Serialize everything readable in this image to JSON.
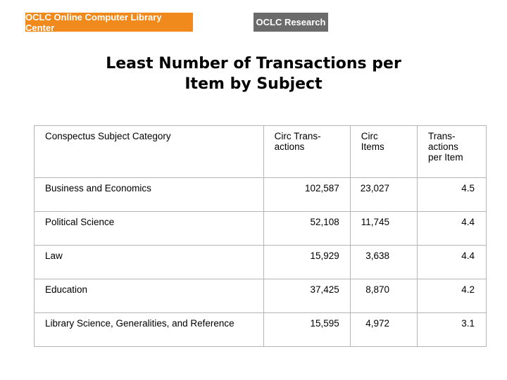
{
  "header": {
    "logo_left": "OCLC Online Computer Library Center",
    "logo_right": "OCLC Research"
  },
  "title": {
    "line1": "Least Number of Transactions per",
    "line2": "Item by Subject"
  },
  "table": {
    "headers": {
      "category": "Conspectus Subject Category",
      "circ_trans_line1": "Circ Trans-",
      "circ_trans_line2": "actions",
      "circ_items_line1": "Circ",
      "circ_items_line2": "Items",
      "per_item_line1": "Trans-",
      "per_item_line2": "actions",
      "per_item_line3": "per Item"
    },
    "rows": [
      {
        "category": "Business and Economics",
        "circ_transactions": "102,587",
        "circ_items": "23,027",
        "per_item": "4.5"
      },
      {
        "category": "Political Science",
        "circ_transactions": "52,108",
        "circ_items": "11,745",
        "per_item": "4.4"
      },
      {
        "category": "Law",
        "circ_transactions": "15,929",
        "circ_items": "3,638",
        "per_item": "4.4"
      },
      {
        "category": "Education",
        "circ_transactions": "37,425",
        "circ_items": "8,870",
        "per_item": "4.2"
      },
      {
        "category": "Library Science, Generalities, and Reference",
        "circ_transactions": "15,595",
        "circ_items": "4,972",
        "per_item": "3.1"
      }
    ]
  }
}
